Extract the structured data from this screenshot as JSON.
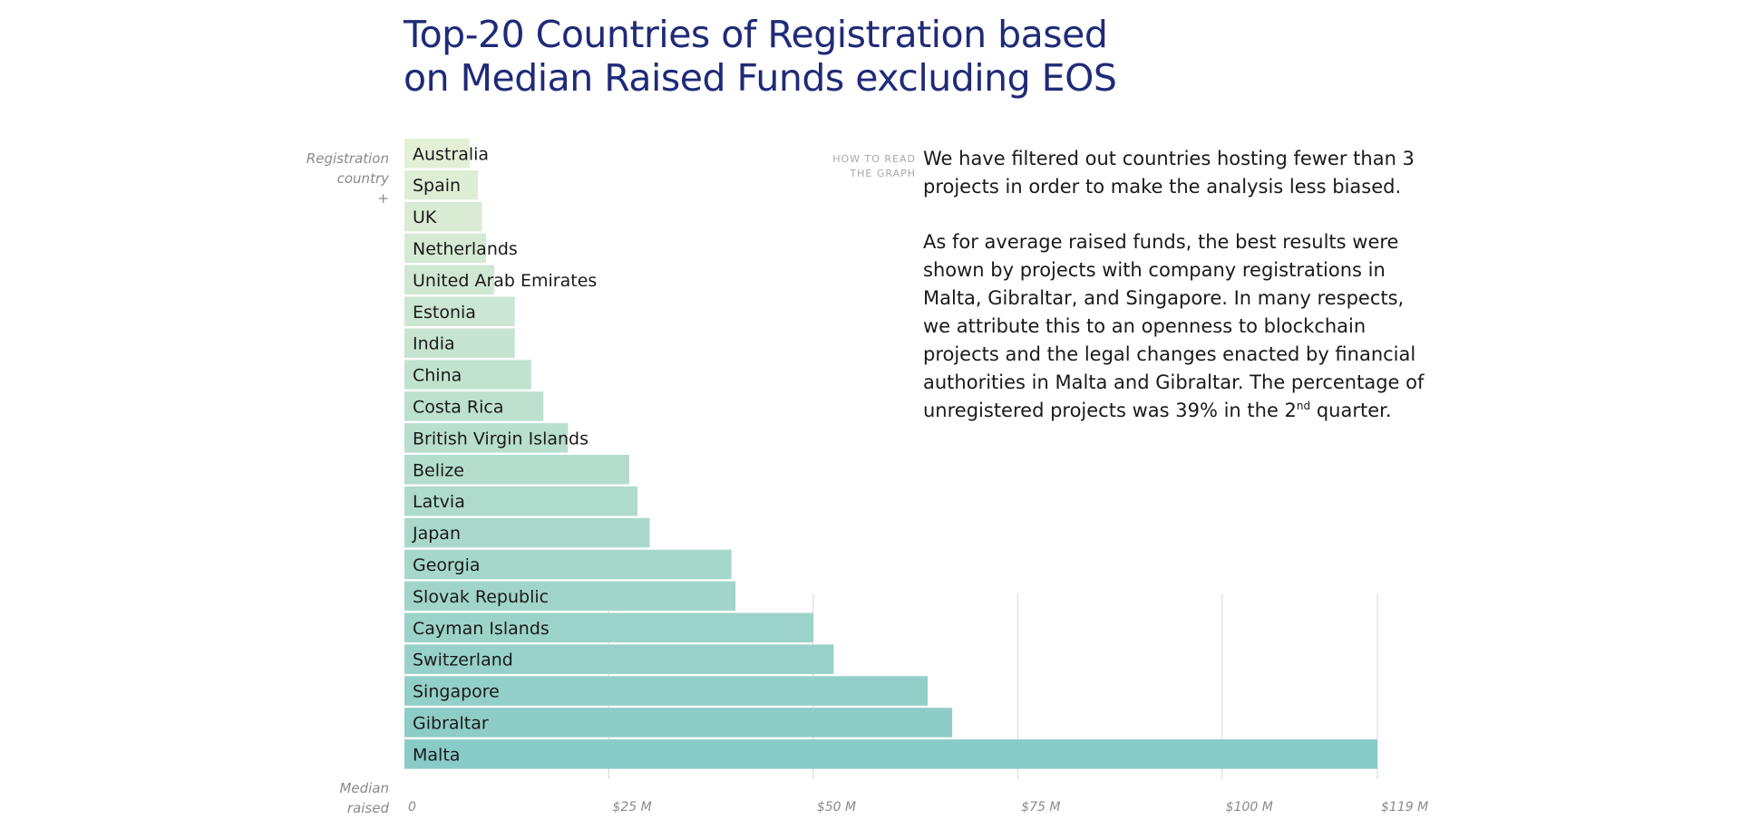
{
  "chart_data": {
    "type": "bar",
    "orientation": "horizontal",
    "title_lines": [
      "Top-20 Countries of Registration based",
      "on Median Raised Funds excluding EOS"
    ],
    "y_caption_lines": [
      "Registration",
      "country",
      "+"
    ],
    "x_caption_lines": [
      "Median",
      "raised"
    ],
    "categories": [
      "Australia",
      "Spain",
      "UK",
      "Netherlands",
      "United Arab Emirates",
      "Estonia",
      "India",
      "China",
      "Costa Rica",
      "British Virgin Islands",
      "Belize",
      "Latvia",
      "Japan",
      "Georgia",
      "Slovak Republic",
      "Cayman Islands",
      "Switzerland",
      "Singapore",
      "Gibraltar",
      "Malta"
    ],
    "values": [
      8,
      9,
      9.5,
      10,
      11,
      13.5,
      13.5,
      15.5,
      17,
      20,
      27.5,
      28.5,
      30,
      40,
      40.5,
      50,
      52.5,
      64,
      67,
      119
    ],
    "unit": "M",
    "xlim": [
      0,
      119
    ],
    "xticks": [
      0,
      25,
      50,
      75,
      100,
      119
    ],
    "xtick_labels": [
      "0",
      "$25 M",
      "$50 M",
      "$75 M",
      "$100 M",
      "$119 M"
    ],
    "color_start": "#e3f0d6",
    "color_end": "#89cbc6",
    "gridline_color": "#cdded8",
    "grid": true
  },
  "howto_lines": [
    "HOW TO READ",
    "THE GRAPH"
  ],
  "notes": {
    "p1": "We have filtered out countries hosting fewer than 3 projects in order to make the analysis less biased.",
    "p2_before_sup": "As for average raised funds, the best results were shown by projects with company registrations in Malta, Gibraltar, and Singapore. In many respects, we attribute this to an openness to blockchain projects and the legal changes enacted by financial authorities in Malta and Gibraltar. The percentage of unregistered projects was 39% in the 2",
    "p2_sup": "nd",
    "p2_after_sup": " quarter."
  }
}
